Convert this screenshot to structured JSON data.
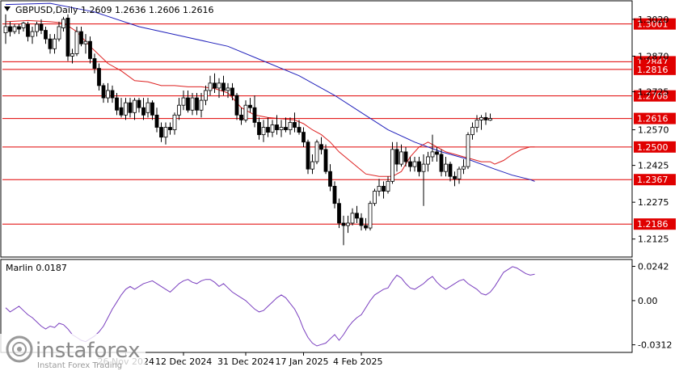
{
  "chart_data": [
    {
      "type": "candlestick",
      "title": "GBPUSD,Daily  1.2609 1.2636 1.2606 1.2616",
      "symbol": "GBPUSD",
      "timeframe": "Daily",
      "ohlc_last": {
        "open": 1.2609,
        "high": 1.2636,
        "low": 1.2606,
        "close": 1.2616
      },
      "ylim": [
        1.2055,
        1.3092
      ],
      "y_ticks": [
        "1.3020",
        "1.2870",
        "1.2725",
        "1.2570",
        "1.2425",
        "1.2275",
        "1.2125"
      ],
      "x_ticks": [
        "26 Nov 2024",
        "12 Dec 2024",
        "31 Dec 2024",
        "17 Jan 2025",
        "4 Feb 2025"
      ],
      "x_tick_index": [
        27,
        40,
        54,
        67,
        80
      ],
      "levels": [
        {
          "value": 1.3001,
          "label": "1.3001"
        },
        {
          "value": 1.2847,
          "label": "1.2847"
        },
        {
          "value": 1.2816,
          "label": "1.2816"
        },
        {
          "value": 1.2708,
          "label": "1.2708"
        },
        {
          "value": 1.2616,
          "label": "1.2616"
        },
        {
          "value": 1.25,
          "label": "1.2500"
        },
        {
          "value": 1.2367,
          "label": "1.2367"
        },
        {
          "value": 1.2186,
          "label": "1.2186"
        }
      ],
      "candles": [
        [
          1.2965,
          1.304,
          1.292,
          1.299
        ],
        [
          1.299,
          1.301,
          1.295,
          1.297
        ],
        [
          1.297,
          1.3,
          1.296,
          1.299
        ],
        [
          1.299,
          1.3,
          1.296,
          1.298
        ],
        [
          1.2985,
          1.301,
          1.297,
          1.3005
        ],
        [
          1.3,
          1.301,
          1.293,
          1.295
        ],
        [
          1.295,
          1.299,
          1.292,
          1.297
        ],
        [
          1.297,
          1.301,
          1.295,
          1.3
        ],
        [
          1.3,
          1.302,
          1.296,
          1.2975
        ],
        [
          1.2975,
          1.299,
          1.292,
          1.294
        ],
        [
          1.294,
          1.296,
          1.288,
          1.29
        ],
        [
          1.29,
          1.296,
          1.288,
          1.294
        ],
        [
          1.294,
          1.301,
          1.293,
          1.299
        ],
        [
          1.2985,
          1.303,
          1.297,
          1.302
        ],
        [
          1.3025,
          1.304,
          1.285,
          1.287
        ],
        [
          1.287,
          1.29,
          1.284,
          1.288
        ],
        [
          1.288,
          1.299,
          1.287,
          1.297
        ],
        [
          1.297,
          1.299,
          1.291,
          1.292
        ],
        [
          1.292,
          1.296,
          1.288,
          1.293
        ],
        [
          1.293,
          1.295,
          1.284,
          1.286
        ],
        [
          1.286,
          1.288,
          1.28,
          1.282
        ],
        [
          1.282,
          1.284,
          1.273,
          1.275
        ],
        [
          1.275,
          1.276,
          1.268,
          1.27
        ],
        [
          1.27,
          1.276,
          1.268,
          1.273
        ],
        [
          1.273,
          1.275,
          1.268,
          1.27
        ],
        [
          1.27,
          1.272,
          1.263,
          1.265
        ],
        [
          1.266,
          1.27,
          1.262,
          1.263
        ],
        [
          1.263,
          1.27,
          1.261,
          1.268
        ],
        [
          1.268,
          1.27,
          1.262,
          1.264
        ],
        [
          1.264,
          1.27,
          1.261,
          1.269
        ],
        [
          1.269,
          1.27,
          1.264,
          1.266
        ],
        [
          1.266,
          1.27,
          1.261,
          1.263
        ],
        [
          1.264,
          1.27,
          1.262,
          1.268
        ],
        [
          1.268,
          1.269,
          1.261,
          1.263
        ],
        [
          1.263,
          1.266,
          1.256,
          1.258
        ],
        [
          1.258,
          1.26,
          1.252,
          1.254
        ],
        [
          1.254,
          1.26,
          1.251,
          1.258
        ],
        [
          1.258,
          1.26,
          1.255,
          1.257
        ],
        [
          1.257,
          1.264,
          1.255,
          1.263
        ],
        [
          1.263,
          1.27,
          1.261,
          1.267
        ],
        [
          1.267,
          1.273,
          1.265,
          1.27
        ],
        [
          1.27,
          1.273,
          1.264,
          1.265
        ],
        [
          1.265,
          1.272,
          1.263,
          1.27
        ],
        [
          1.27,
          1.272,
          1.263,
          1.265
        ],
        [
          1.265,
          1.272,
          1.262,
          1.269
        ],
        [
          1.269,
          1.275,
          1.267,
          1.273
        ],
        [
          1.273,
          1.279,
          1.271,
          1.276
        ],
        [
          1.276,
          1.28,
          1.272,
          1.274
        ],
        [
          1.274,
          1.278,
          1.27,
          1.276
        ],
        [
          1.276,
          1.279,
          1.271,
          1.273
        ],
        [
          1.273,
          1.276,
          1.27,
          1.274
        ],
        [
          1.274,
          1.276,
          1.269,
          1.271
        ],
        [
          1.271,
          1.272,
          1.261,
          1.263
        ],
        [
          1.263,
          1.266,
          1.259,
          1.261
        ],
        [
          1.261,
          1.269,
          1.26,
          1.267
        ],
        [
          1.267,
          1.27,
          1.264,
          1.266
        ],
        [
          1.266,
          1.271,
          1.258,
          1.26
        ],
        [
          1.26,
          1.262,
          1.253,
          1.255
        ],
        [
          1.255,
          1.261,
          1.252,
          1.258
        ],
        [
          1.258,
          1.262,
          1.254,
          1.256
        ],
        [
          1.256,
          1.261,
          1.254,
          1.259
        ],
        [
          1.259,
          1.263,
          1.255,
          1.257
        ],
        [
          1.257,
          1.261,
          1.254,
          1.258
        ],
        [
          1.258,
          1.262,
          1.256,
          1.257
        ],
        [
          1.257,
          1.262,
          1.255,
          1.26
        ],
        [
          1.26,
          1.264,
          1.256,
          1.258
        ],
        [
          1.258,
          1.261,
          1.255,
          1.256
        ],
        [
          1.256,
          1.258,
          1.25,
          1.252
        ],
        [
          1.252,
          1.253,
          1.239,
          1.241
        ],
        [
          1.241,
          1.247,
          1.239,
          1.244
        ],
        [
          1.244,
          1.253,
          1.243,
          1.252
        ],
        [
          1.251,
          1.254,
          1.247,
          1.249
        ],
        [
          1.249,
          1.251,
          1.239,
          1.24
        ],
        [
          1.24,
          1.243,
          1.232,
          1.234
        ],
        [
          1.234,
          1.236,
          1.225,
          1.227
        ],
        [
          1.227,
          1.229,
          1.217,
          1.219
        ],
        [
          1.219,
          1.222,
          1.21,
          1.218
        ],
        [
          1.218,
          1.222,
          1.215,
          1.219
        ],
        [
          1.219,
          1.225,
          1.218,
          1.223
        ],
        [
          1.223,
          1.226,
          1.219,
          1.221
        ],
        [
          1.221,
          1.223,
          1.216,
          1.218
        ],
        [
          1.218,
          1.221,
          1.216,
          1.217
        ],
        [
          1.217,
          1.228,
          1.216,
          1.227
        ],
        [
          1.227,
          1.233,
          1.226,
          1.232
        ],
        [
          1.232,
          1.237,
          1.23,
          1.234
        ],
        [
          1.234,
          1.236,
          1.229,
          1.232
        ],
        [
          1.232,
          1.238,
          1.231,
          1.236
        ],
        [
          1.236,
          1.252,
          1.235,
          1.249
        ],
        [
          1.249,
          1.252,
          1.24,
          1.243
        ],
        [
          1.243,
          1.251,
          1.242,
          1.248
        ],
        [
          1.248,
          1.25,
          1.242,
          1.244
        ],
        [
          1.244,
          1.246,
          1.24,
          1.242
        ],
        [
          1.242,
          1.246,
          1.24,
          1.244
        ],
        [
          1.244,
          1.246,
          1.238,
          1.24
        ],
        [
          1.24,
          1.247,
          1.226,
          1.243
        ],
        [
          1.243,
          1.248,
          1.24,
          1.246
        ],
        [
          1.246,
          1.255,
          1.244,
          1.248
        ],
        [
          1.248,
          1.25,
          1.244,
          1.247
        ],
        [
          1.247,
          1.249,
          1.238,
          1.24
        ],
        [
          1.24,
          1.246,
          1.238,
          1.243
        ],
        [
          1.243,
          1.244,
          1.236,
          1.238
        ],
        [
          1.238,
          1.24,
          1.234,
          1.237
        ],
        [
          1.237,
          1.242,
          1.235,
          1.241
        ],
        [
          1.241,
          1.245,
          1.239,
          1.242
        ],
        [
          1.242,
          1.256,
          1.241,
          1.255
        ],
        [
          1.255,
          1.26,
          1.253,
          1.258
        ],
        [
          1.258,
          1.263,
          1.256,
          1.261
        ],
        [
          1.261,
          1.263,
          1.257,
          1.262
        ],
        [
          1.262,
          1.264,
          1.259,
          1.261
        ],
        [
          1.2609,
          1.2636,
          1.2606,
          1.2616
        ]
      ],
      "ma_red": [
        [
          0,
          1.301
        ],
        [
          5,
          1.3015
        ],
        [
          10,
          1.301
        ],
        [
          13,
          1.3005
        ],
        [
          16,
          1.297
        ],
        [
          19,
          1.291
        ],
        [
          23,
          1.284
        ],
        [
          26,
          1.281
        ],
        [
          29,
          1.277
        ],
        [
          32,
          1.2765
        ],
        [
          35,
          1.275
        ],
        [
          38,
          1.275
        ],
        [
          41,
          1.2745
        ],
        [
          44,
          1.2745
        ],
        [
          47,
          1.2738
        ],
        [
          50,
          1.272
        ],
        [
          53,
          1.266
        ],
        [
          56,
          1.263
        ],
        [
          59,
          1.262
        ],
        [
          62,
          1.2615
        ],
        [
          65,
          1.261
        ],
        [
          67,
          1.2595
        ],
        [
          69,
          1.257
        ],
        [
          71,
          1.255
        ],
        [
          73,
          1.252
        ],
        [
          75,
          1.248
        ],
        [
          77,
          1.245
        ],
        [
          79,
          1.242
        ],
        [
          81,
          1.239
        ],
        [
          84,
          1.238
        ],
        [
          87,
          1.238
        ],
        [
          89,
          1.24
        ],
        [
          91,
          1.246
        ],
        [
          93,
          1.25
        ],
        [
          95,
          1.252
        ],
        [
          97,
          1.25
        ],
        [
          99,
          1.248
        ],
        [
          101,
          1.247
        ],
        [
          103,
          1.246
        ],
        [
          105,
          1.245
        ],
        [
          107,
          1.244
        ],
        [
          109,
          1.244
        ],
        [
          110,
          1.243
        ],
        [
          112,
          1.2445
        ],
        [
          114,
          1.247
        ],
        [
          116,
          1.249
        ],
        [
          118,
          1.25
        ],
        [
          119,
          1.25
        ]
      ],
      "ma_blue": [
        [
          0,
          1.308
        ],
        [
          10,
          1.3085
        ],
        [
          20,
          1.305
        ],
        [
          30,
          1.299
        ],
        [
          40,
          1.295
        ],
        [
          50,
          1.291
        ],
        [
          58,
          1.285
        ],
        [
          66,
          1.279
        ],
        [
          74,
          1.271
        ],
        [
          80,
          1.264
        ],
        [
          86,
          1.257
        ],
        [
          92,
          1.252
        ],
        [
          98,
          1.248
        ],
        [
          104,
          1.245
        ],
        [
          110,
          1.241
        ],
        [
          114,
          1.2385
        ],
        [
          118,
          1.2367
        ],
        [
          119,
          1.236
        ]
      ]
    },
    {
      "type": "line",
      "title": "Marlin 0.0187",
      "ylim": [
        -0.036,
        0.0285
      ],
      "y_ticks": [
        "0.0242",
        "0.00",
        "-0.0312"
      ],
      "values": [
        -0.005,
        -0.008,
        -0.006,
        -0.004,
        -0.007,
        -0.01,
        -0.012,
        -0.015,
        -0.018,
        -0.02,
        -0.018,
        -0.019,
        -0.016,
        -0.017,
        -0.02,
        -0.024,
        -0.026,
        -0.028,
        -0.029,
        -0.027,
        -0.025,
        -0.022,
        -0.018,
        -0.012,
        -0.006,
        -0.001,
        0.004,
        0.008,
        0.01,
        0.008,
        0.01,
        0.012,
        0.013,
        0.014,
        0.012,
        0.01,
        0.008,
        0.006,
        0.009,
        0.012,
        0.014,
        0.015,
        0.013,
        0.012,
        0.014,
        0.015,
        0.015,
        0.013,
        0.01,
        0.012,
        0.009,
        0.006,
        0.004,
        0.002,
        0.0,
        -0.003,
        -0.006,
        -0.008,
        -0.007,
        -0.004,
        -0.001,
        0.002,
        0.004,
        0.002,
        -0.002,
        -0.006,
        -0.012,
        -0.02,
        -0.026,
        -0.03,
        -0.032,
        -0.031,
        -0.03,
        -0.027,
        -0.024,
        -0.028,
        -0.024,
        -0.019,
        -0.015,
        -0.012,
        -0.01,
        -0.005,
        0.0,
        0.004,
        0.006,
        0.008,
        0.009,
        0.014,
        0.018,
        0.016,
        0.012,
        0.009,
        0.008,
        0.01,
        0.012,
        0.015,
        0.017,
        0.013,
        0.01,
        0.008,
        0.01,
        0.012,
        0.014,
        0.015,
        0.012,
        0.01,
        0.008,
        0.005,
        0.004,
        0.006,
        0.01,
        0.015,
        0.02,
        0.022,
        0.024,
        0.023,
        0.021,
        0.019,
        0.018,
        0.0187
      ]
    }
  ],
  "watermark": {
    "brand": "instaforex",
    "tagline": "Instant Forex Trading"
  },
  "colors": {
    "bull": "#ffffff",
    "bear": "#000000",
    "level": "#e00000",
    "ma_red": "#dd2020",
    "ma_blue": "#2020bb",
    "marlin": "#7a3fbf",
    "label_bg": "#e00000"
  },
  "icons": {
    "menu_arrow": "triangle-down-icon",
    "logo": "instaforex-logo-icon"
  }
}
